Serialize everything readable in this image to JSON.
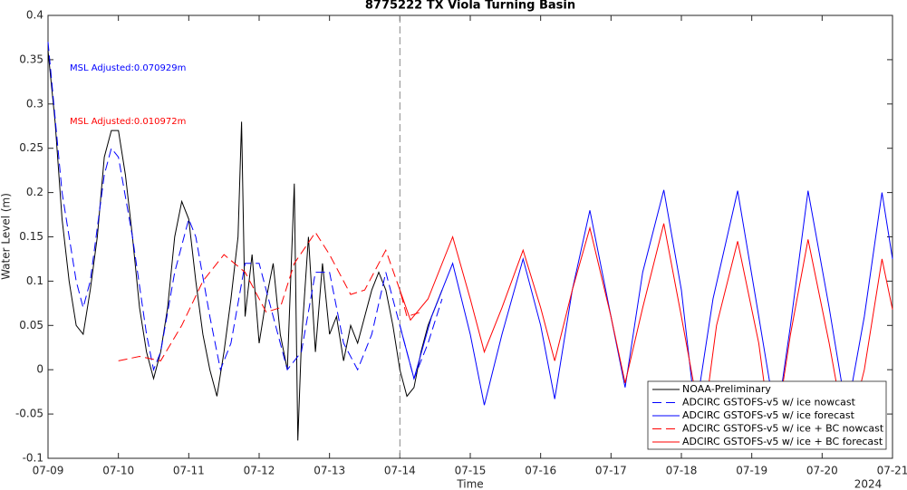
{
  "chart_data": {
    "type": "line",
    "title": "8775222 TX Viola Turning Basin",
    "xlabel": "Time",
    "ylabel": "Water Level (m)",
    "x_secondary_label": "2024",
    "xlim": [
      9,
      21
    ],
    "ylim": [
      -0.1,
      0.4
    ],
    "xticks": [
      {
        "value": 9,
        "label": "07-09"
      },
      {
        "value": 10,
        "label": "07-10"
      },
      {
        "value": 11,
        "label": "07-11"
      },
      {
        "value": 12,
        "label": "07-12"
      },
      {
        "value": 13,
        "label": "07-13"
      },
      {
        "value": 14,
        "label": "07-14"
      },
      {
        "value": 15,
        "label": "07-15"
      },
      {
        "value": 16,
        "label": "07-16"
      },
      {
        "value": 17,
        "label": "07-17"
      },
      {
        "value": 18,
        "label": "07-18"
      },
      {
        "value": 19,
        "label": "07-19"
      },
      {
        "value": 20,
        "label": "07-20"
      },
      {
        "value": 21,
        "label": "07-21"
      }
    ],
    "yticks": [
      -0.1,
      -0.05,
      0,
      0.05,
      0.1,
      0.15,
      0.2,
      0.25,
      0.3,
      0.35,
      0.4
    ],
    "grid": false,
    "legend": "lower right",
    "vline": 14,
    "annotations": [
      {
        "text": "MSL Adjusted:0.070929m",
        "color": "#0000ff"
      },
      {
        "text": "MSL Adjusted:0.010972m",
        "color": "#ff0000"
      }
    ],
    "series": [
      {
        "name": "NOAA-Preliminary",
        "color": "#000000",
        "dash": false,
        "x": [
          9.0,
          9.1,
          9.2,
          9.3,
          9.4,
          9.5,
          9.6,
          9.7,
          9.8,
          9.9,
          10.0,
          10.1,
          10.2,
          10.3,
          10.4,
          10.5,
          10.6,
          10.7,
          10.8,
          10.9,
          11.0,
          11.1,
          11.2,
          11.3,
          11.4,
          11.5,
          11.6,
          11.7,
          11.75,
          11.8,
          11.9,
          12.0,
          12.1,
          12.2,
          12.3,
          12.4,
          12.5,
          12.55,
          12.6,
          12.7,
          12.8,
          12.9,
          13.0,
          13.1,
          13.2,
          13.3,
          13.4,
          13.5,
          13.6,
          13.7,
          13.8,
          13.9,
          14.0,
          14.1,
          14.2,
          14.3,
          14.4,
          14.5,
          14.6
        ],
        "values": [
          0.36,
          0.28,
          0.17,
          0.1,
          0.05,
          0.04,
          0.09,
          0.15,
          0.24,
          0.27,
          0.27,
          0.22,
          0.15,
          0.07,
          0.02,
          -0.01,
          0.02,
          0.07,
          0.15,
          0.19,
          0.17,
          0.1,
          0.04,
          0.0,
          -0.03,
          0.02,
          0.08,
          0.15,
          0.28,
          0.06,
          0.13,
          0.03,
          0.08,
          0.12,
          0.04,
          0.0,
          0.21,
          -0.08,
          0.03,
          0.15,
          0.02,
          0.12,
          0.04,
          0.06,
          0.01,
          0.05,
          0.03,
          0.06,
          0.09,
          0.11,
          0.09,
          0.05,
          0.0,
          -0.03,
          -0.02,
          0.02,
          0.05,
          0.07,
          0.09
        ]
      },
      {
        "name": "ADCIRC GSTOFS-v5 w/ ice nowcast",
        "color": "#0000ff",
        "dash": true,
        "x": [
          9.0,
          9.2,
          9.4,
          9.5,
          9.6,
          9.8,
          9.9,
          10.0,
          10.2,
          10.4,
          10.5,
          10.6,
          10.8,
          11.0,
          11.1,
          11.3,
          11.45,
          11.6,
          11.8,
          12.0,
          12.2,
          12.4,
          12.6,
          12.8,
          13.0,
          13.2,
          13.4,
          13.6,
          13.8,
          14.0,
          14.2,
          14.4,
          14.6
        ],
        "values": [
          0.37,
          0.2,
          0.1,
          0.07,
          0.1,
          0.22,
          0.25,
          0.24,
          0.15,
          0.04,
          0.0,
          0.02,
          0.11,
          0.17,
          0.15,
          0.06,
          0.0,
          0.03,
          0.12,
          0.12,
          0.06,
          0.0,
          0.02,
          0.11,
          0.11,
          0.03,
          0.0,
          0.04,
          0.11,
          0.05,
          -0.01,
          0.03,
          0.08
        ]
      },
      {
        "name": "ADCIRC GSTOFS-v5 w/ ice forecast",
        "color": "#0000ff",
        "dash": false,
        "x": [
          14.0,
          14.2,
          14.45,
          14.75,
          15.0,
          15.2,
          15.45,
          15.75,
          16.0,
          16.2,
          16.45,
          16.7,
          17.0,
          17.2,
          17.45,
          17.75,
          18.0,
          18.2,
          18.45,
          18.8,
          19.1,
          19.35,
          19.55,
          19.8,
          20.1,
          20.35,
          20.6,
          20.85,
          21.0
        ],
        "values": [
          0.05,
          -0.01,
          0.06,
          0.12,
          0.04,
          -0.04,
          0.04,
          0.125,
          0.05,
          -0.033,
          0.09,
          0.18,
          0.06,
          -0.02,
          0.11,
          0.203,
          0.09,
          -0.05,
          0.08,
          0.202,
          0.06,
          -0.06,
          0.05,
          0.202,
          0.07,
          -0.05,
          0.06,
          0.2,
          0.125
        ]
      },
      {
        "name": "ADCIRC GSTOFS-v5 w/ ice + BC nowcast",
        "color": "#ff0000",
        "dash": true,
        "x": [
          10.0,
          10.3,
          10.6,
          10.9,
          11.2,
          11.5,
          11.8,
          12.1,
          12.3,
          12.5,
          12.8,
          13.0,
          13.3,
          13.5,
          13.8,
          14.0,
          14.1,
          14.3
        ],
        "values": [
          0.01,
          0.015,
          0.01,
          0.05,
          0.1,
          0.13,
          0.11,
          0.065,
          0.07,
          0.12,
          0.155,
          0.13,
          0.085,
          0.09,
          0.135,
          0.09,
          0.06,
          0.065
        ]
      },
      {
        "name": "ADCIRC GSTOFS-v5 w/ ice + BC forecast",
        "color": "#ff0000",
        "dash": false,
        "x": [
          14.0,
          14.15,
          14.4,
          14.75,
          15.0,
          15.2,
          15.45,
          15.75,
          16.0,
          16.2,
          16.45,
          16.7,
          17.0,
          17.2,
          17.45,
          17.75,
          18.0,
          18.3,
          18.5,
          18.8,
          19.1,
          19.3,
          19.55,
          19.8,
          20.1,
          20.35,
          20.6,
          20.85,
          21.0
        ],
        "values": [
          0.09,
          0.056,
          0.08,
          0.15,
          0.08,
          0.02,
          0.07,
          0.135,
          0.07,
          0.01,
          0.09,
          0.16,
          0.06,
          -0.015,
          0.07,
          0.165,
          0.06,
          -0.07,
          0.05,
          0.145,
          0.03,
          -0.09,
          0.04,
          0.147,
          0.03,
          -0.08,
          0.0,
          0.125,
          0.068
        ]
      }
    ]
  }
}
